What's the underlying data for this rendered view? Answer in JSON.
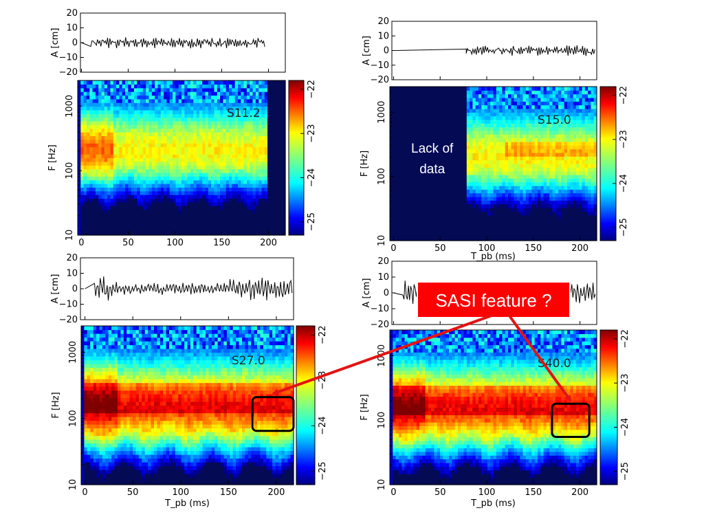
{
  "chart_data": [
    {
      "type": "heatmap",
      "model": "S11.2",
      "time_axis": {
        "ticks": [
          "0",
          "50",
          "100",
          "150",
          "200"
        ],
        "range": [
          -4,
          218
        ]
      },
      "amplitude_axis": {
        "label": "A [cm]",
        "ticks": [
          "20",
          "10",
          "0",
          "−10",
          "−20"
        ],
        "range": [
          -20,
          20
        ]
      },
      "frequency_axis": {
        "label": "F [Hz]",
        "ticks": [
          "1000",
          "100",
          "10"
        ],
        "range": [
          10,
          2500
        ],
        "scale": "log"
      },
      "colorbar": {
        "ticks": [
          "−22",
          "−23",
          "−24",
          "−25"
        ],
        "range": [
          -25.3,
          -21.8
        ]
      },
      "signal_end_ms": 197,
      "activity": "low",
      "no_data_ranges_ms": [
        [
          198,
          218
        ]
      ]
    },
    {
      "type": "heatmap",
      "model": "S15.0",
      "time_axis": {
        "ticks": [
          "0",
          "50",
          "100",
          "150",
          "200"
        ],
        "label": "T_pb (ms)",
        "range": [
          -4,
          218
        ]
      },
      "amplitude_axis": {
        "label": "A [cm]",
        "ticks": [
          "20",
          "10",
          "0",
          "−10",
          "−20"
        ],
        "range": [
          -20,
          20
        ]
      },
      "frequency_axis": {
        "label": "F [Hz]",
        "ticks": [
          "1000",
          "100",
          "10"
        ],
        "range": [
          10,
          2500
        ],
        "scale": "log"
      },
      "colorbar": {
        "ticks": [
          "−22",
          "−23",
          "−24",
          "−25"
        ],
        "range": [
          -25.3,
          -21.8
        ]
      },
      "signal_start_ms": 78,
      "activity": "low",
      "no_data_ranges_ms": [
        [
          5,
          78
        ]
      ],
      "annotation": "Lack of\ndata"
    },
    {
      "type": "heatmap",
      "model": "S27.0",
      "time_axis": {
        "ticks": [
          "0",
          "50",
          "100",
          "150",
          "200"
        ],
        "range": [
          -4,
          218
        ]
      },
      "amplitude_axis": {
        "label": "A [cm]",
        "ticks": [
          "20",
          "10",
          "0",
          "−10",
          "−20"
        ],
        "range": [
          -20,
          20
        ]
      },
      "frequency_axis": {
        "label": "F [Hz]",
        "ticks": [
          "1000",
          "100",
          "10"
        ],
        "range": [
          10,
          2500
        ],
        "scale": "log"
      },
      "colorbar": {
        "ticks": [
          "−22",
          "−23",
          "−24",
          "−25"
        ],
        "range": [
          -25.3,
          -21.8
        ]
      },
      "activity": "high",
      "highlight_box": {
        "t_ms": [
          175,
          218
        ],
        "f_hz": [
          65,
          210
        ]
      }
    },
    {
      "type": "heatmap",
      "model": "S40.0",
      "time_axis": {
        "ticks": [
          "0",
          "50",
          "100",
          "150",
          "200"
        ],
        "range": [
          -4,
          218
        ]
      },
      "amplitude_axis": {
        "label": "A [cm]",
        "ticks": [
          "20",
          "10",
          "0",
          "−10",
          "−20"
        ],
        "range": [
          -20,
          20
        ]
      },
      "frequency_axis": {
        "label": "F [Hz]",
        "ticks": [
          "1000",
          "100",
          "10"
        ],
        "range": [
          10,
          2500
        ],
        "scale": "log"
      },
      "colorbar": {
        "ticks": [
          "−22",
          "−23",
          "−24",
          "−25"
        ],
        "range": [
          -25.3,
          -21.8
        ]
      },
      "activity": "high",
      "highlight_box": {
        "t_ms": [
          170,
          210
        ],
        "f_hz": [
          55,
          180
        ]
      }
    }
  ],
  "x_axis_label": "T_pb (ms)",
  "callout": {
    "label": "SASI feature ?",
    "fill": "#ff0000",
    "text_color": "#ffffff"
  },
  "colors": {
    "jet": [
      "#00007f",
      "#0000ff",
      "#007fff",
      "#00ffff",
      "#7fff7f",
      "#ffff00",
      "#ff7f00",
      "#ff0000",
      "#7f0000"
    ],
    "arrow": "#e51212",
    "no_data": "#050a55"
  }
}
